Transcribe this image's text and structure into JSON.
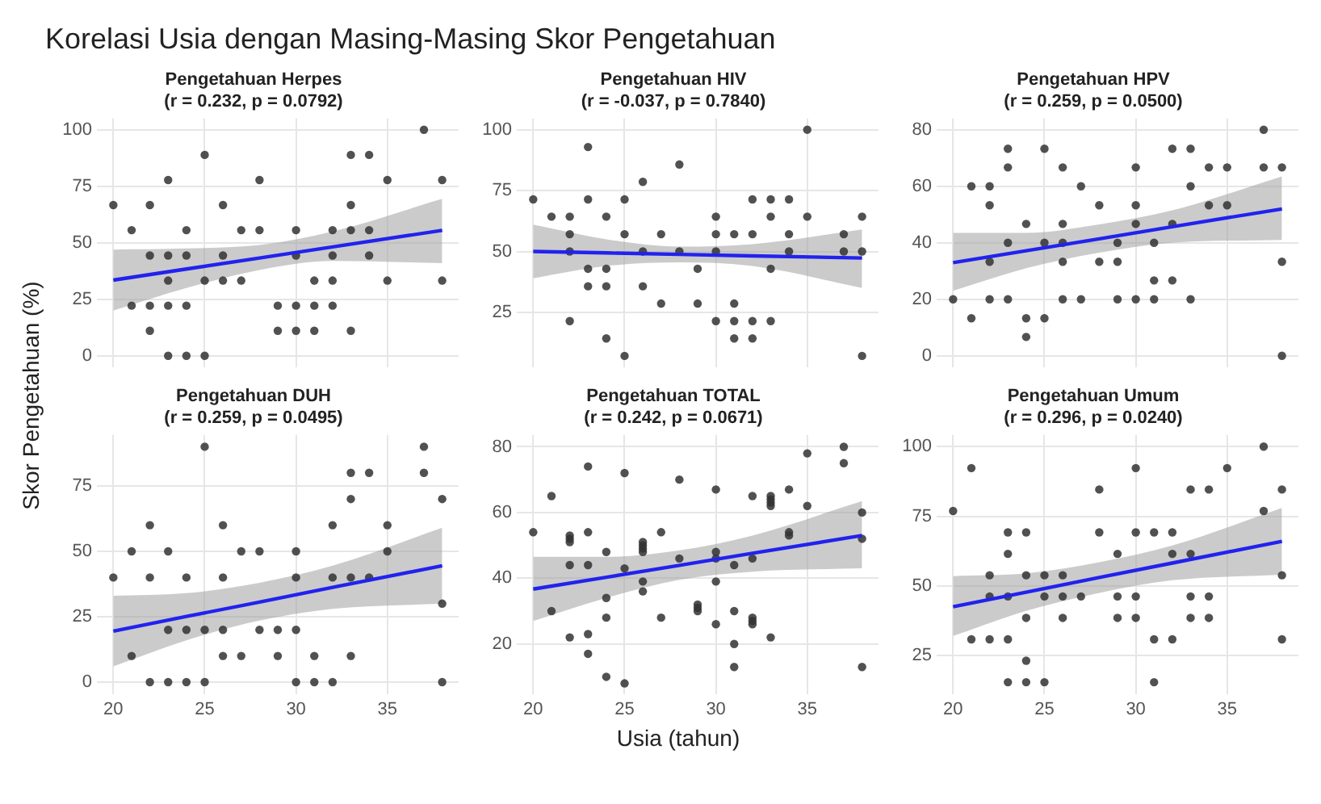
{
  "chart_data": [
    {
      "type": "other",
      "title": "Korelasi Usia dengan Masing-Masing Skor Pengetahuan",
      "xlabel": "Usia (tahun)",
      "ylabel": "Skor Pengetahuan (%)"
    },
    {
      "type": "scatter",
      "title": "Pengetahuan Herpes",
      "subtitle": "(r = 0.232, p = 0.0792)",
      "xlim": [
        19.1,
        38.9
      ],
      "xticks": [
        20,
        25,
        30,
        35
      ],
      "ylim": [
        -5,
        105
      ],
      "yticks": [
        0,
        25,
        50,
        75,
        100
      ],
      "grid": true,
      "tick_labels": "y",
      "series": [
        {
          "type": "scatter",
          "marker": "circle",
          "color": "#333333",
          "x": [
            20,
            21,
            21,
            22,
            22,
            22,
            22,
            23,
            23,
            23,
            23,
            23,
            24,
            24,
            24,
            24,
            25,
            25,
            25,
            26,
            26,
            26,
            27,
            27,
            28,
            28,
            29,
            29,
            30,
            30,
            30,
            30,
            31,
            31,
            31,
            32,
            32,
            32,
            32,
            33,
            33,
            33,
            33,
            34,
            34,
            34,
            35,
            35,
            37,
            38,
            38
          ],
          "values": [
            66.7,
            55.6,
            22.2,
            66.7,
            44.4,
            22.2,
            11.1,
            77.8,
            44.4,
            33.3,
            22.2,
            0,
            55.6,
            44.4,
            22.2,
            0,
            88.9,
            33.3,
            0,
            66.7,
            44.4,
            33.3,
            55.6,
            33.3,
            77.8,
            55.6,
            22.2,
            11.1,
            55.6,
            44.4,
            22.2,
            11.1,
            33.3,
            22.2,
            11.1,
            55.6,
            44.4,
            33.3,
            22.2,
            88.9,
            66.7,
            55.6,
            11.1,
            88.9,
            55.6,
            44.4,
            77.8,
            33.3,
            100,
            77.8,
            33.3
          ]
        },
        {
          "type": "line",
          "color": "#2222ee",
          "x": [
            20,
            24,
            28,
            32,
            38
          ],
          "marker": "none",
          "values": [
            33.5,
            38.4,
            43.3,
            48.2,
            55.5
          ],
          "lower": [
            20,
            30,
            38,
            42,
            41
          ],
          "upper": [
            47,
            47.5,
            49,
            55,
            69.5
          ]
        }
      ]
    },
    {
      "type": "scatter",
      "title": "Pengetahuan HIV",
      "subtitle": "(r = -0.037, p = 0.7840)",
      "xlim": [
        19.1,
        38.9
      ],
      "xticks": [
        20,
        25,
        30,
        35
      ],
      "ylim": [
        2.5,
        104.6
      ],
      "yticks": [
        25,
        50,
        75,
        100
      ],
      "grid": true,
      "tick_labels": "y",
      "series": [
        {
          "type": "scatter",
          "marker": "circle",
          "color": "#333333",
          "x": [
            20,
            21,
            22,
            22,
            22,
            22,
            23,
            23,
            23,
            23,
            24,
            24,
            24,
            24,
            25,
            25,
            25,
            26,
            26,
            26,
            27,
            27,
            28,
            28,
            29,
            29,
            30,
            30,
            30,
            30,
            31,
            31,
            31,
            31,
            32,
            32,
            32,
            32,
            33,
            33,
            33,
            33,
            34,
            34,
            34,
            35,
            35,
            37,
            37,
            38,
            38,
            38
          ],
          "values": [
            71.4,
            64.3,
            64.3,
            57.1,
            50,
            21.4,
            92.9,
            71.4,
            42.9,
            35.7,
            64.3,
            42.9,
            35.7,
            14.3,
            71.4,
            57.1,
            7.1,
            78.6,
            50,
            35.7,
            57.1,
            28.6,
            85.7,
            50,
            42.9,
            28.6,
            64.3,
            57.1,
            50,
            21.4,
            57.1,
            28.6,
            21.4,
            14.3,
            71.4,
            57.1,
            21.4,
            14.3,
            71.4,
            64.3,
            42.9,
            21.4,
            71.4,
            57.1,
            50,
            100,
            64.3,
            57.1,
            50,
            64.3,
            50,
            7.1
          ]
        },
        {
          "type": "line",
          "color": "#2222ee",
          "x": [
            20,
            24,
            28,
            32,
            38
          ],
          "marker": "none",
          "values": [
            50,
            49.4,
            48.8,
            48.2,
            47.3
          ],
          "lower": [
            39,
            44,
            45.5,
            44,
            35
          ],
          "upper": [
            61,
            55,
            52,
            53,
            59
          ]
        }
      ]
    },
    {
      "type": "scatter",
      "title": "Pengetahuan HPV",
      "subtitle": "(r = 0.259, p = 0.0500)",
      "xlim": [
        19.1,
        38.9
      ],
      "xticks": [
        20,
        25,
        30,
        35
      ],
      "ylim": [
        -4,
        84
      ],
      "yticks": [
        0,
        20,
        40,
        60,
        80
      ],
      "grid": true,
      "tick_labels": "y",
      "series": [
        {
          "type": "scatter",
          "marker": "circle",
          "color": "#333333",
          "x": [
            20,
            21,
            21,
            22,
            22,
            22,
            22,
            23,
            23,
            23,
            23,
            24,
            24,
            24,
            25,
            25,
            25,
            26,
            26,
            26,
            26,
            26,
            27,
            27,
            28,
            28,
            29,
            29,
            29,
            30,
            30,
            30,
            30,
            31,
            31,
            31,
            32,
            32,
            32,
            33,
            33,
            33,
            34,
            34,
            35,
            35,
            37,
            37,
            38,
            38,
            38
          ],
          "values": [
            20,
            60,
            13.3,
            60,
            53.3,
            33.3,
            20,
            73.3,
            66.7,
            40,
            20,
            46.7,
            13.3,
            6.7,
            73.3,
            40,
            13.3,
            66.7,
            46.7,
            40,
            33.3,
            20,
            60,
            20,
            53.3,
            33.3,
            40,
            33.3,
            20,
            66.7,
            53.3,
            46.7,
            20,
            40,
            26.7,
            20,
            73.3,
            46.7,
            26.7,
            73.3,
            60,
            20,
            66.7,
            53.3,
            66.7,
            53.3,
            80,
            66.7,
            66.7,
            33.3,
            0
          ]
        },
        {
          "type": "line",
          "color": "#2222ee",
          "x": [
            20,
            24,
            28,
            32,
            38
          ],
          "marker": "none",
          "values": [
            33,
            37.2,
            41.4,
            45.7,
            52
          ],
          "lower": [
            23,
            31,
            36.5,
            40,
            41
          ],
          "upper": [
            43.5,
            43.5,
            46.5,
            51.5,
            63.5
          ]
        }
      ]
    },
    {
      "type": "scatter",
      "title": "Pengetahuan DUH",
      "subtitle": "(r = 0.259, p = 0.0495)",
      "xlim": [
        19.1,
        38.9
      ],
      "xticks": [
        20,
        25,
        30,
        35
      ],
      "ylim": [
        -4.5,
        94.5
      ],
      "yticks": [
        0,
        25,
        50,
        75
      ],
      "grid": true,
      "series": [
        {
          "type": "scatter",
          "marker": "circle",
          "color": "#333333",
          "x": [
            20,
            21,
            21,
            22,
            22,
            22,
            23,
            23,
            23,
            24,
            24,
            24,
            25,
            25,
            25,
            26,
            26,
            26,
            26,
            27,
            27,
            28,
            28,
            29,
            29,
            30,
            30,
            30,
            30,
            31,
            31,
            32,
            32,
            32,
            33,
            33,
            33,
            33,
            34,
            34,
            35,
            35,
            37,
            37,
            38,
            38,
            38
          ],
          "values": [
            40,
            50,
            10,
            60,
            40,
            0,
            50,
            20,
            0,
            40,
            20,
            0,
            90,
            20,
            0,
            60,
            40,
            20,
            10,
            50,
            10,
            50,
            20,
            20,
            10,
            50,
            40,
            20,
            0,
            10,
            0,
            60,
            40,
            0,
            80,
            70,
            40,
            10,
            80,
            40,
            60,
            50,
            90,
            80,
            70,
            30,
            0
          ]
        },
        {
          "type": "line",
          "color": "#2222ee",
          "x": [
            20,
            24,
            28,
            32,
            38
          ],
          "marker": "none",
          "values": [
            19.5,
            25.1,
            30.6,
            36.2,
            44.5
          ],
          "lower": [
            6,
            16,
            23.5,
            28,
            30
          ],
          "upper": [
            33,
            34,
            38,
            44.5,
            59
          ]
        }
      ]
    },
    {
      "type": "scatter",
      "title": "Pengetahuan TOTAL",
      "subtitle": "(r = 0.242, p = 0.0671)",
      "xlim": [
        19.1,
        38.9
      ],
      "xticks": [
        20,
        25,
        30,
        35
      ],
      "ylim": [
        4.8,
        83.6
      ],
      "yticks": [
        20,
        40,
        60,
        80
      ],
      "grid": true,
      "series": [
        {
          "type": "scatter",
          "marker": "circle",
          "color": "#333333",
          "x": [
            20,
            21,
            21,
            22,
            22,
            22,
            22,
            22,
            23,
            23,
            23,
            23,
            23,
            24,
            24,
            24,
            24,
            25,
            25,
            25,
            26,
            26,
            26,
            26,
            26,
            26,
            27,
            27,
            28,
            28,
            29,
            29,
            29,
            30,
            30,
            30,
            30,
            30,
            31,
            31,
            31,
            31,
            32,
            32,
            32,
            32,
            32,
            33,
            33,
            33,
            33,
            33,
            34,
            34,
            34,
            35,
            35,
            37,
            37,
            38,
            38,
            38
          ],
          "values": [
            54,
            65,
            30,
            53,
            52,
            51,
            44,
            22,
            74,
            54,
            44,
            23,
            17,
            48,
            34,
            28,
            10,
            72,
            43,
            8,
            51,
            50,
            49,
            48,
            39,
            36,
            54,
            28,
            70,
            46,
            32,
            31,
            30,
            67,
            48,
            46,
            39,
            26,
            44,
            30,
            20,
            13,
            65,
            46,
            28,
            27,
            26,
            65,
            64,
            63,
            62,
            22,
            67,
            54,
            53,
            78,
            62,
            80,
            75,
            60,
            52,
            13
          ]
        },
        {
          "type": "line",
          "color": "#2222ee",
          "x": [
            20,
            24,
            28,
            32,
            38
          ],
          "marker": "none",
          "values": [
            36.7,
            40.3,
            43.9,
            47.6,
            53
          ],
          "lower": [
            27,
            34,
            39.5,
            42,
            43
          ],
          "upper": [
            46.5,
            46.5,
            48.5,
            53,
            63.5
          ]
        }
      ]
    },
    {
      "type": "scatter",
      "title": "Pengetahuan Umum",
      "subtitle": "(r = 0.296, p = 0.0240)",
      "xlim": [
        19.1,
        38.9
      ],
      "xticks": [
        20,
        25,
        30,
        35
      ],
      "ylim": [
        11.2,
        104.2
      ],
      "yticks": [
        25,
        50,
        75,
        100
      ],
      "grid": true,
      "series": [
        {
          "type": "scatter",
          "marker": "circle",
          "color": "#333333",
          "x": [
            20,
            21,
            21,
            22,
            22,
            22,
            23,
            23,
            23,
            23,
            23,
            24,
            24,
            24,
            24,
            24,
            25,
            25,
            25,
            26,
            26,
            26,
            27,
            28,
            28,
            29,
            29,
            29,
            30,
            30,
            30,
            30,
            31,
            31,
            31,
            32,
            32,
            32,
            33,
            33,
            33,
            33,
            34,
            34,
            34,
            35,
            37,
            37,
            38,
            38,
            38
          ],
          "values": [
            76.9,
            92.3,
            30.8,
            53.8,
            46.2,
            30.8,
            69.2,
            61.5,
            46.2,
            30.8,
            15.4,
            69.2,
            53.8,
            38.5,
            23.1,
            15.4,
            53.8,
            46.2,
            15.4,
            53.8,
            46.2,
            38.5,
            46.2,
            84.6,
            69.2,
            61.5,
            46.2,
            38.5,
            92.3,
            69.2,
            46.2,
            38.5,
            69.2,
            30.8,
            15.4,
            69.2,
            61.5,
            30.8,
            84.6,
            61.5,
            46.2,
            38.5,
            84.6,
            46.2,
            38.5,
            92.3,
            100,
            76.9,
            84.6,
            53.8,
            30.8
          ]
        },
        {
          "type": "line",
          "color": "#2222ee",
          "x": [
            20,
            24,
            28,
            32,
            38
          ],
          "marker": "none",
          "values": [
            42.5,
            47.7,
            53,
            58.2,
            66
          ],
          "lower": [
            32,
            41,
            47.5,
            52,
            54
          ],
          "upper": [
            53.5,
            54.5,
            58.5,
            64.5,
            78
          ]
        }
      ]
    }
  ]
}
